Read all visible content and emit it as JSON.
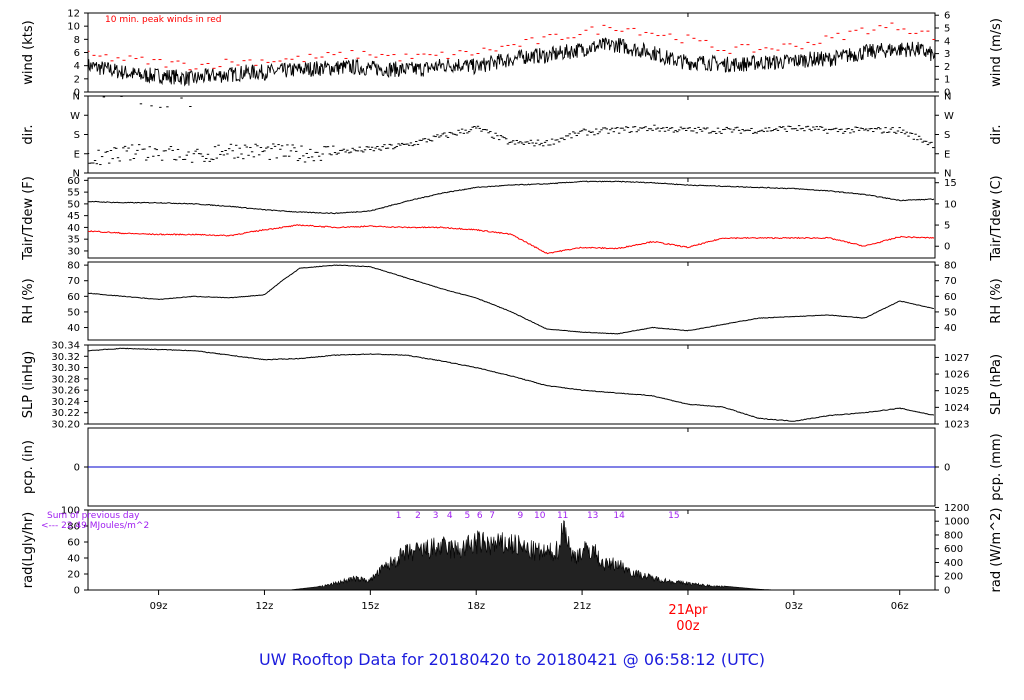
{
  "page": {
    "title": "UW Rooftop Data for 20180420  to  20180421 @ 06:58:12  (UTC)"
  },
  "colors": {
    "main": "#000000",
    "peak": "#ff0000",
    "dew": "#ff0000",
    "pcp": "#0000cc",
    "rad_text": "#a020f0",
    "date_label": "#ff0000",
    "title": "#1d1ddd"
  },
  "chart_data": [
    {
      "id": "wind",
      "type": "line",
      "ylabel_left": "wind (kts)",
      "ylabel_right": "wind (m/s)",
      "ylim": [
        0,
        12
      ],
      "yticks_left": [
        "0",
        "2",
        "4",
        "6",
        "8",
        "10",
        "12"
      ],
      "yticks_left_values": [
        0,
        2,
        4,
        6,
        8,
        10,
        12
      ],
      "yticks_right": [
        "0",
        "1",
        "2",
        "3",
        "4",
        "5",
        "6"
      ],
      "yticks_right_values": [
        0,
        1.944,
        3.888,
        5.832,
        7.776,
        9.72,
        11.664
      ],
      "annotation": "10 min. peak winds in red",
      "series": [
        {
          "x": [
            7,
            7.5,
            8,
            8.5,
            9,
            9.5,
            10,
            10.5,
            11,
            11.5,
            12,
            12.5,
            13,
            13.5,
            14,
            14.5,
            15,
            15.5,
            16,
            16.5,
            17,
            17.5,
            18,
            18.5,
            19,
            19.5,
            20,
            20.5,
            21,
            21.5,
            22,
            22.5,
            23,
            23.5,
            24,
            24.5,
            25,
            25.5,
            26,
            26.5,
            27,
            27.5,
            28,
            28.5,
            29,
            29.5,
            30,
            30.5,
            31
          ],
          "values": [
            4,
            3.5,
            3,
            2.5,
            2.5,
            2.3,
            2,
            2.5,
            2.6,
            3,
            3,
            3.2,
            3.4,
            3.6,
            3.7,
            3.8,
            3.6,
            3.5,
            3.4,
            3.5,
            4,
            4.2,
            3.8,
            4.5,
            5,
            5.5,
            5.5,
            6,
            6.5,
            7,
            7.2,
            6.5,
            6,
            5,
            4.5,
            4.5,
            4.2,
            4.2,
            4.5,
            4.5,
            4.7,
            5,
            5,
            5.5,
            6,
            6.3,
            6.5,
            6.5,
            5.5
          ]
        },
        {
          "name": "10 min. peak winds",
          "x": [
            7,
            8,
            9,
            10,
            11,
            12,
            13,
            14,
            15,
            16,
            17,
            18,
            19,
            20,
            21,
            22,
            23,
            24,
            25,
            26,
            27,
            28,
            29,
            30,
            31
          ],
          "values": [
            5.5,
            5,
            4.5,
            4,
            4.5,
            4.8,
            5,
            5.5,
            5.8,
            5.2,
            5.5,
            6,
            7,
            8,
            9,
            10,
            9,
            8,
            6.5,
            6.5,
            7,
            8,
            9.5,
            10,
            8.5
          ]
        }
      ]
    },
    {
      "id": "dir",
      "type": "scatter",
      "ylabel_left": "dir.",
      "ylabel_right": "dir.",
      "ylim": [
        0,
        360
      ],
      "yticks_left": [
        "N",
        "E",
        "S",
        "W",
        "N"
      ],
      "yticks_left_values": [
        0,
        90,
        180,
        270,
        360
      ],
      "yticks_right": [
        "N",
        "E",
        "S",
        "W",
        "N"
      ],
      "yticks_right_values": [
        0,
        90,
        180,
        270,
        360
      ],
      "series": [
        {
          "x": [
            7,
            8,
            9,
            10,
            11,
            12,
            13,
            14,
            15,
            16,
            17,
            18,
            19,
            20,
            21,
            22,
            23,
            24,
            25,
            26,
            27,
            28,
            29,
            30,
            31
          ],
          "values": [
            60,
            90,
            100,
            70,
            110,
            100,
            90,
            100,
            110,
            130,
            170,
            210,
            140,
            140,
            190,
            200,
            210,
            200,
            200,
            200,
            210,
            200,
            200,
            200,
            130
          ]
        }
      ]
    },
    {
      "id": "temp",
      "type": "line",
      "ylabel_left": "Tair/Tdew (F)",
      "ylabel_right": "Tair/Tdew (C)",
      "ylim": [
        27,
        61
      ],
      "yticks_left": [
        "30",
        "35",
        "40",
        "45",
        "50",
        "55",
        "60"
      ],
      "yticks_left_values": [
        30,
        35,
        40,
        45,
        50,
        55,
        60
      ],
      "yticks_right": [
        "0",
        "5",
        "10",
        "15"
      ],
      "yticks_right_values": [
        32,
        41,
        50,
        59
      ],
      "series": [
        {
          "x": [
            7,
            8,
            9,
            10,
            11,
            12,
            13,
            14,
            15,
            16,
            17,
            18,
            19,
            20,
            21,
            22,
            23,
            24,
            25,
            26,
            27,
            28,
            29,
            30,
            31
          ],
          "values": [
            51,
            50.5,
            50.5,
            50,
            49,
            47.5,
            46.5,
            46,
            47,
            51,
            54.5,
            57,
            58,
            58.5,
            59.5,
            59.5,
            59,
            58,
            57.5,
            57,
            56.5,
            55.5,
            54,
            51.5,
            52
          ]
        },
        {
          "x": [
            7,
            8,
            9,
            10,
            11,
            12,
            13,
            14,
            15,
            16,
            17,
            18,
            19,
            20,
            21,
            22,
            23,
            24,
            25,
            26,
            27,
            28,
            29,
            30,
            31
          ],
          "values": [
            38.5,
            37.5,
            37,
            37,
            36.5,
            39,
            41,
            40,
            40.5,
            40,
            40,
            39,
            37,
            29,
            31.5,
            31,
            34,
            31.5,
            35.5,
            35.5,
            35.5,
            35.5,
            32,
            36,
            35.5
          ]
        }
      ]
    },
    {
      "id": "rh",
      "type": "line",
      "ylabel_left": "RH (%)",
      "ylabel_right": "RH (%)",
      "ylim": [
        32,
        82
      ],
      "yticks_left": [
        "40",
        "50",
        "60",
        "70",
        "80"
      ],
      "yticks_left_values": [
        40,
        50,
        60,
        70,
        80
      ],
      "yticks_right": [
        "40",
        "50",
        "60",
        "70",
        "80"
      ],
      "yticks_right_values": [
        40,
        50,
        60,
        70,
        80
      ],
      "series": [
        {
          "x": [
            7,
            8,
            9,
            10,
            11,
            12,
            12.5,
            13,
            14,
            15,
            16,
            17,
            18,
            19,
            20,
            21,
            22,
            23,
            24,
            25,
            26,
            27,
            28,
            29,
            30,
            31
          ],
          "values": [
            62,
            60,
            58,
            60,
            59,
            61,
            70,
            78,
            80,
            79,
            72,
            65,
            59,
            50,
            39,
            37,
            36,
            40,
            38,
            42,
            46,
            47,
            48,
            46,
            57,
            52
          ]
        }
      ]
    },
    {
      "id": "slp",
      "type": "line",
      "ylabel_left": "SLP (inHg)",
      "ylabel_right": "SLP (hPa)",
      "ylim": [
        30.2,
        30.34
      ],
      "yticks_left": [
        "30.20",
        "30.22",
        "30.24",
        "30.26",
        "30.28",
        "30.30",
        "30.32",
        "30.34"
      ],
      "yticks_left_values": [
        30.2,
        30.22,
        30.24,
        30.26,
        30.28,
        30.3,
        30.32,
        30.34
      ],
      "yticks_right": [
        "1023",
        "1024",
        "1025",
        "1026",
        "1027"
      ],
      "yticks_right_values": [
        30.2,
        30.2295,
        30.259,
        30.2885,
        30.318
      ],
      "series": [
        {
          "x": [
            7,
            8,
            9,
            10,
            11,
            12,
            13,
            14,
            15,
            16,
            17,
            18,
            19,
            20,
            21,
            22,
            23,
            24,
            25,
            26,
            27,
            28,
            29,
            30,
            31
          ],
          "values": [
            30.33,
            30.334,
            30.332,
            30.33,
            30.322,
            30.314,
            30.316,
            30.322,
            30.324,
            30.322,
            30.312,
            30.3,
            30.285,
            30.268,
            30.26,
            30.255,
            30.25,
            30.235,
            30.23,
            30.21,
            30.205,
            30.215,
            30.22,
            30.228,
            30.215
          ]
        }
      ]
    },
    {
      "id": "pcp",
      "type": "line",
      "ylabel_left": "pcp. (in)",
      "ylabel_right": "pcp. (mm)",
      "yticks_left": [
        "0"
      ],
      "yticks_right": [
        "0"
      ],
      "series": [
        {
          "x": [
            7,
            31
          ],
          "values": [
            0,
            0
          ]
        }
      ]
    },
    {
      "id": "rad",
      "type": "area",
      "ylabel_left": "rad(Lgly/hr)",
      "ylabel_right": "rad (W/m^2)",
      "ylim": [
        0,
        100
      ],
      "yticks_left": [
        "0",
        "20",
        "40",
        "60",
        "80",
        "100"
      ],
      "yticks_left_values": [
        0,
        20,
        40,
        60,
        80,
        100
      ],
      "yticks_right": [
        "0",
        "200",
        "400",
        "600",
        "800",
        "1000",
        "1200"
      ],
      "yticks_right_values": [
        0,
        17.2,
        34.4,
        51.6,
        68.8,
        86,
        103.2
      ],
      "note": [
        "Sum of previous day",
        "<--- 22.49 MJoules/m^2"
      ],
      "hour_labels": [
        "1",
        "2",
        "3",
        "4",
        "5",
        "6",
        "7",
        "9",
        "10",
        "11",
        "13",
        "14",
        "15"
      ],
      "hour_labels_x": [
        15.8,
        16.35,
        16.85,
        17.25,
        17.75,
        18.1,
        18.45,
        19.25,
        19.8,
        20.45,
        21.3,
        22.05,
        23.6
      ],
      "series": [
        {
          "x": [
            12.7,
            13.5,
            14,
            14.5,
            15,
            15.3,
            15.7,
            16,
            16.5,
            17,
            17.5,
            18,
            18.5,
            19,
            19.5,
            20,
            20.3,
            20.5,
            20.7,
            21,
            21.3,
            21.6,
            22,
            22.5,
            23,
            23.5,
            24,
            24.5,
            25,
            25.5,
            26,
            26.5
          ],
          "values": [
            0,
            4,
            10,
            17,
            15,
            30,
            45,
            55,
            60,
            65,
            60,
            72,
            68,
            70,
            60,
            55,
            60,
            100,
            50,
            58,
            62,
            38,
            40,
            25,
            18,
            13,
            10,
            7,
            5,
            3,
            1,
            0
          ]
        }
      ]
    }
  ],
  "x_axis": {
    "range": [
      7,
      31
    ],
    "ticks": [
      "09z",
      "12z",
      "15z",
      "18z",
      "21z",
      "00z",
      "03z",
      "06z"
    ],
    "tick_values": [
      9,
      12,
      15,
      18,
      21,
      24,
      27,
      30
    ],
    "date_label": "21Apr",
    "date_label_x": 24
  }
}
